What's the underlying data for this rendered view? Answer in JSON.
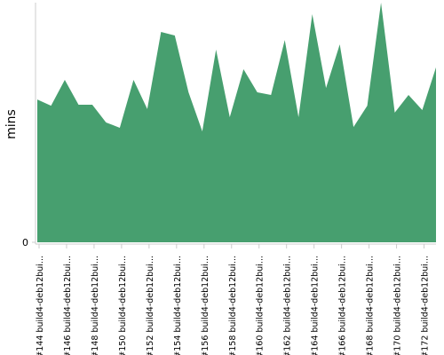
{
  "chart_data": {
    "type": "area",
    "y_label": "mins",
    "categories": [
      "#144 build4-deb12bui...",
      null,
      "#146 build4-deb12bui...",
      null,
      "#148 build4-deb12bui...",
      null,
      "#150 build4-deb12bui...",
      null,
      "#152 build4-deb12bui...",
      null,
      "#154 build4-deb12bui...",
      null,
      "#156 build4-deb12bui...",
      null,
      "#158 build4-deb12bui...",
      null,
      "#160 build4-deb12bui...",
      null,
      "#162 build4-deb12bui...",
      null,
      "#164 build4-deb12bui...",
      null,
      "#166 build4-deb12bui...",
      null,
      "#168 build4-deb12bui...",
      null,
      "#170 build4-deb12bui...",
      null,
      "#172 build4-deb12bui...",
      null
    ],
    "values": [
      59.6,
      57.0,
      67.8,
      57.4,
      57.4,
      50.0,
      47.8,
      67.8,
      55.6,
      87.8,
      86.3,
      62.6,
      46.3,
      80.4,
      52.2,
      72.2,
      62.6,
      61.5,
      84.4,
      52.2,
      95.2,
      64.4,
      82.6,
      48.1,
      57.0,
      100,
      54.1,
      61.5,
      55.2,
      73.0
    ],
    "color": "#479f6f",
    "ylim": [
      0,
      100
    ],
    "yticks": [
      0
    ]
  }
}
